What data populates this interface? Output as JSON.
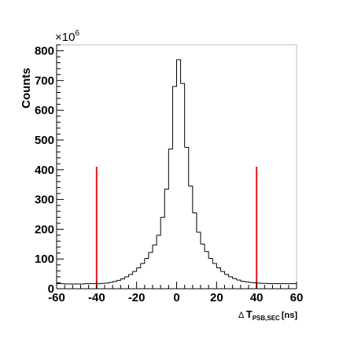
{
  "chart_data": {
    "type": "histogram",
    "ylabel": "Counts",
    "y_multiplier": "×10",
    "y_multiplier_exp": "6",
    "xlabel": {
      "prefix": "Δ",
      "symbol": "T",
      "subscript": "PSB,SEC",
      "unit": "[ns]"
    },
    "xlim": [
      -60,
      60
    ],
    "ylim": [
      0,
      820
    ],
    "xticks": [
      -60,
      -40,
      -20,
      0,
      20,
      40,
      60
    ],
    "yticks": [
      0,
      100,
      200,
      300,
      400,
      500,
      600,
      700,
      800
    ],
    "bin_width": 2,
    "bins_x": [
      -60,
      -58,
      -56,
      -54,
      -52,
      -50,
      -48,
      -46,
      -44,
      -42,
      -40,
      -38,
      -36,
      -34,
      -32,
      -30,
      -28,
      -26,
      -24,
      -22,
      -20,
      -18,
      -16,
      -14,
      -12,
      -10,
      -8,
      -6,
      -4,
      -2,
      0,
      2,
      4,
      6,
      8,
      10,
      12,
      14,
      16,
      18,
      20,
      22,
      24,
      26,
      28,
      30,
      32,
      34,
      36,
      38,
      40,
      42,
      44,
      46,
      48,
      50,
      52,
      54,
      56,
      58
    ],
    "values": [
      17,
      17,
      16,
      16,
      16,
      16,
      16,
      17,
      17,
      17,
      17,
      18,
      19,
      21,
      24,
      28,
      33,
      40,
      48,
      58,
      70,
      85,
      102,
      122,
      147,
      180,
      240,
      335,
      470,
      680,
      770,
      690,
      475,
      345,
      255,
      190,
      150,
      125,
      102,
      85,
      70,
      58,
      48,
      40,
      34,
      29,
      25,
      23,
      21,
      20,
      19,
      18,
      18,
      17,
      17,
      17,
      17,
      17,
      17,
      17
    ],
    "cut_lines": [
      {
        "x": -40,
        "y_top": 410,
        "color": "#e8141c"
      },
      {
        "x": 40,
        "y_top": 410,
        "color": "#e8141c"
      }
    ],
    "line_color": "#000000",
    "frame_color": "#bdbdbd",
    "grid": false
  }
}
